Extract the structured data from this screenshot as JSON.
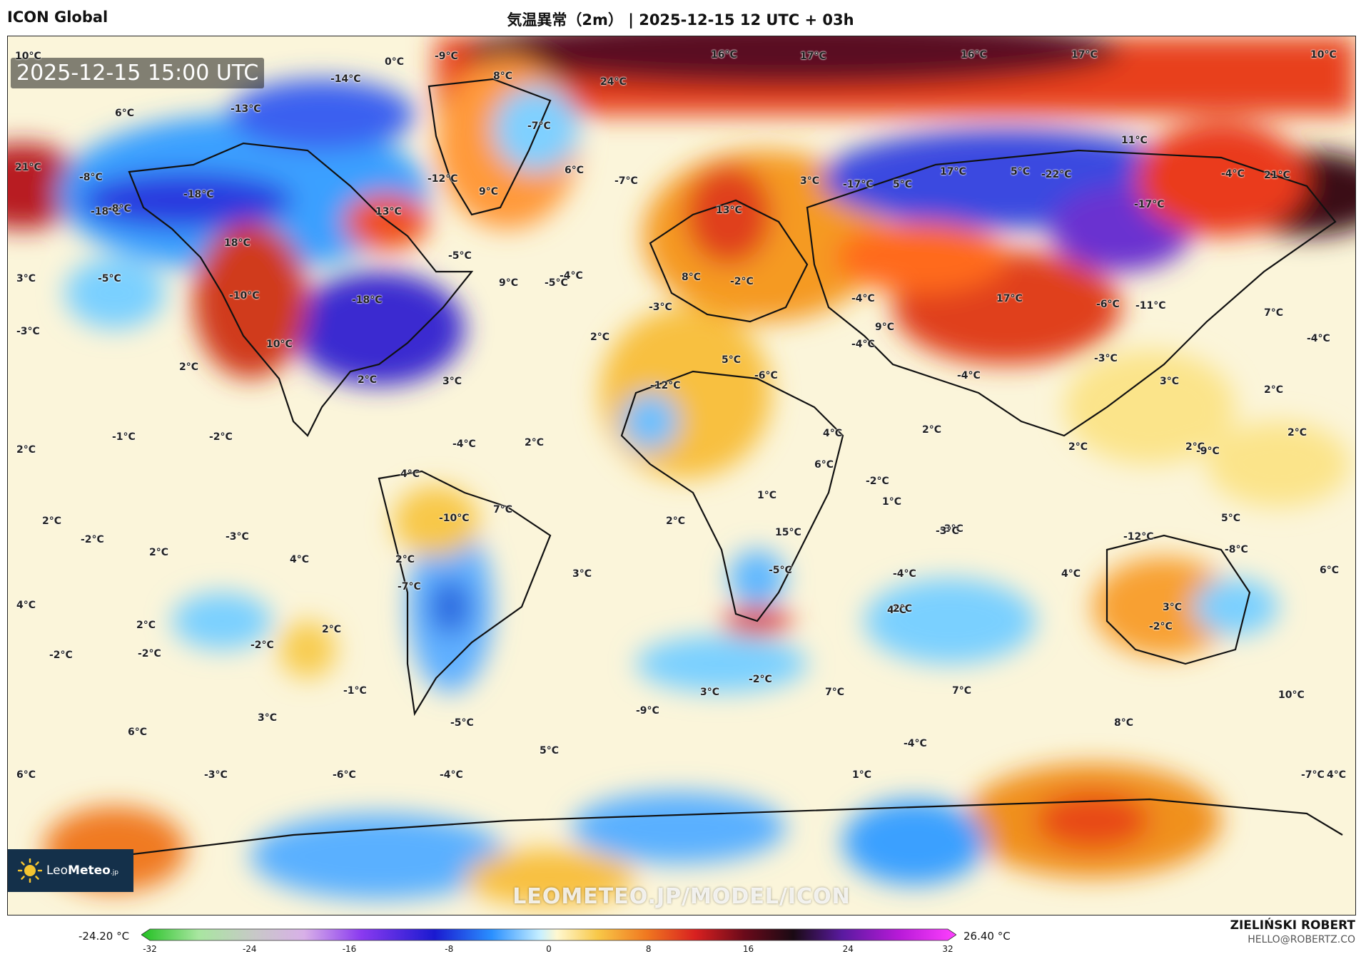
{
  "header": {
    "model": "ICON Global",
    "title": "気温異常（2m） | 2025-12-15 12 UTC + 03h"
  },
  "map": {
    "timestamp": "2025-12-15 15:00 UTC",
    "watermark": "LEOMETEO.JP/MODEL/ICON",
    "labels": [
      "10°C",
      "0°C",
      "-9°C",
      "-14°C",
      "8°C",
      "24°C",
      "16°C",
      "17°C",
      "16°C",
      "17°C",
      "10°C",
      "6°C",
      "-13°C",
      "-7°C",
      "11°C",
      "21°C",
      "-18°C",
      "-8°C",
      "-18°C",
      "-8°C",
      "-12°C",
      "9°C",
      "6°C",
      "-7°C",
      "3°C",
      "-17°C",
      "5°C",
      "17°C",
      "5°C",
      "-22°C",
      "-4°C",
      "21°C",
      "-17°C",
      "13°C",
      "13°C",
      "18°C",
      "-5°C",
      "-5°C",
      "3°C",
      "-5°C",
      "-10°C",
      "-4°C",
      "-18°C",
      "9°C",
      "-2°C",
      "8°C",
      "-3°C",
      "-4°C",
      "17°C",
      "-6°C",
      "-11°C",
      "7°C",
      "-3°C",
      "10°C",
      "2°C",
      "9°C",
      "-4°C",
      "-4°C",
      "-3°C",
      "-4°C",
      "5°C",
      "2°C",
      "2°C",
      "3°C",
      "-12°C",
      "-6°C",
      "2°C",
      "3°C",
      "-1°C",
      "-2°C",
      "2°C",
      "-4°C",
      "2°C",
      "2°C",
      "6°C",
      "4°C",
      "2°C",
      "2°C",
      "2°C",
      "4°C",
      "-2°C",
      "1°C",
      "-9°C",
      "1°C",
      "2°C",
      "-10°C",
      "7°C",
      "2°C",
      "15°C",
      "-3°C",
      "5°C",
      "-12°C",
      "-2°C",
      "-3°C",
      "2°C",
      "4°C",
      "2°C",
      "3°C",
      "-3°C",
      "-5°C",
      "4°C",
      "-4°C",
      "-8°C",
      "6°C",
      "-7°C",
      "4°C",
      "2°C",
      "2°C",
      "-2°C",
      "4°C",
      "3°C",
      "-2°C",
      "-2°C",
      "-2°C",
      "2°C",
      "-1°C",
      "-2°C",
      "3°C",
      "7°C",
      "7°C",
      "10°C",
      "6°C",
      "3°C",
      "-9°C",
      "-5°C",
      "8°C",
      "6°C",
      "-3°C",
      "-6°C",
      "-4°C",
      "5°C",
      "-4°C",
      "1°C",
      "-7°C",
      "4°C"
    ]
  },
  "logo": {
    "brand_prefix": "Leo",
    "brand_bold": "Meteo",
    "brand_suffix": ".jp"
  },
  "colorbar": {
    "min_label": "-24.20 °C",
    "max_label": "26.40 °C",
    "ticks": [
      "-32",
      "-24",
      "-16",
      "-8",
      "0",
      "8",
      "16",
      "24",
      "32"
    ]
  },
  "author": {
    "name": "ZIELIŃSKI ROBERT",
    "email": "HELLO@ROBERTZ.CO"
  }
}
